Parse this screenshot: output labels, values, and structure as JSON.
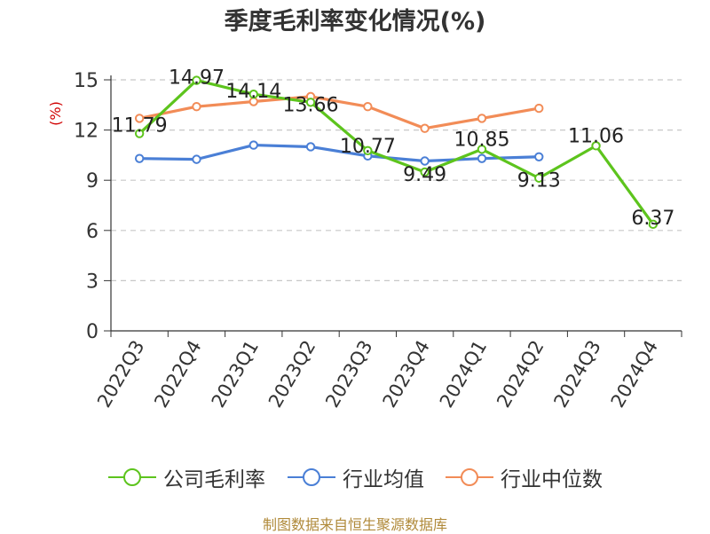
{
  "title": "季度毛利率变化情况(%)",
  "source": "制图数据来自恒生聚源数据库",
  "chart_data": {
    "type": "line",
    "title": "季度毛利率变化情况(%)",
    "ylabel": "(%)",
    "xlabel": "",
    "ylim": [
      0,
      15
    ],
    "yticks": [
      0,
      3,
      6,
      9,
      12,
      15
    ],
    "grid": true,
    "legend_position": "bottom",
    "categories": [
      "2022Q3",
      "2022Q4",
      "2023Q1",
      "2023Q2",
      "2023Q3",
      "2023Q4",
      "2024Q1",
      "2024Q2",
      "2024Q3",
      "2024Q4"
    ],
    "series": [
      {
        "name": "公司毛利率",
        "color": "#5dc41d",
        "values": [
          11.79,
          14.97,
          14.14,
          13.66,
          10.77,
          9.49,
          10.85,
          9.13,
          11.06,
          6.37
        ],
        "labels": [
          "11.79",
          "14.97",
          "14.14",
          "13.66",
          "10.77",
          "9.49",
          "10.85",
          "9.13",
          "11.06",
          "6.37"
        ]
      },
      {
        "name": "行业均值",
        "color": "#4a7fd6",
        "values": [
          10.3,
          10.25,
          11.1,
          11.0,
          10.45,
          10.15,
          10.3,
          10.4,
          null,
          null
        ]
      },
      {
        "name": "行业中位数",
        "color": "#f28c57",
        "values": [
          12.7,
          13.4,
          13.7,
          14.0,
          13.4,
          12.1,
          12.7,
          13.3,
          null,
          null
        ]
      }
    ]
  }
}
